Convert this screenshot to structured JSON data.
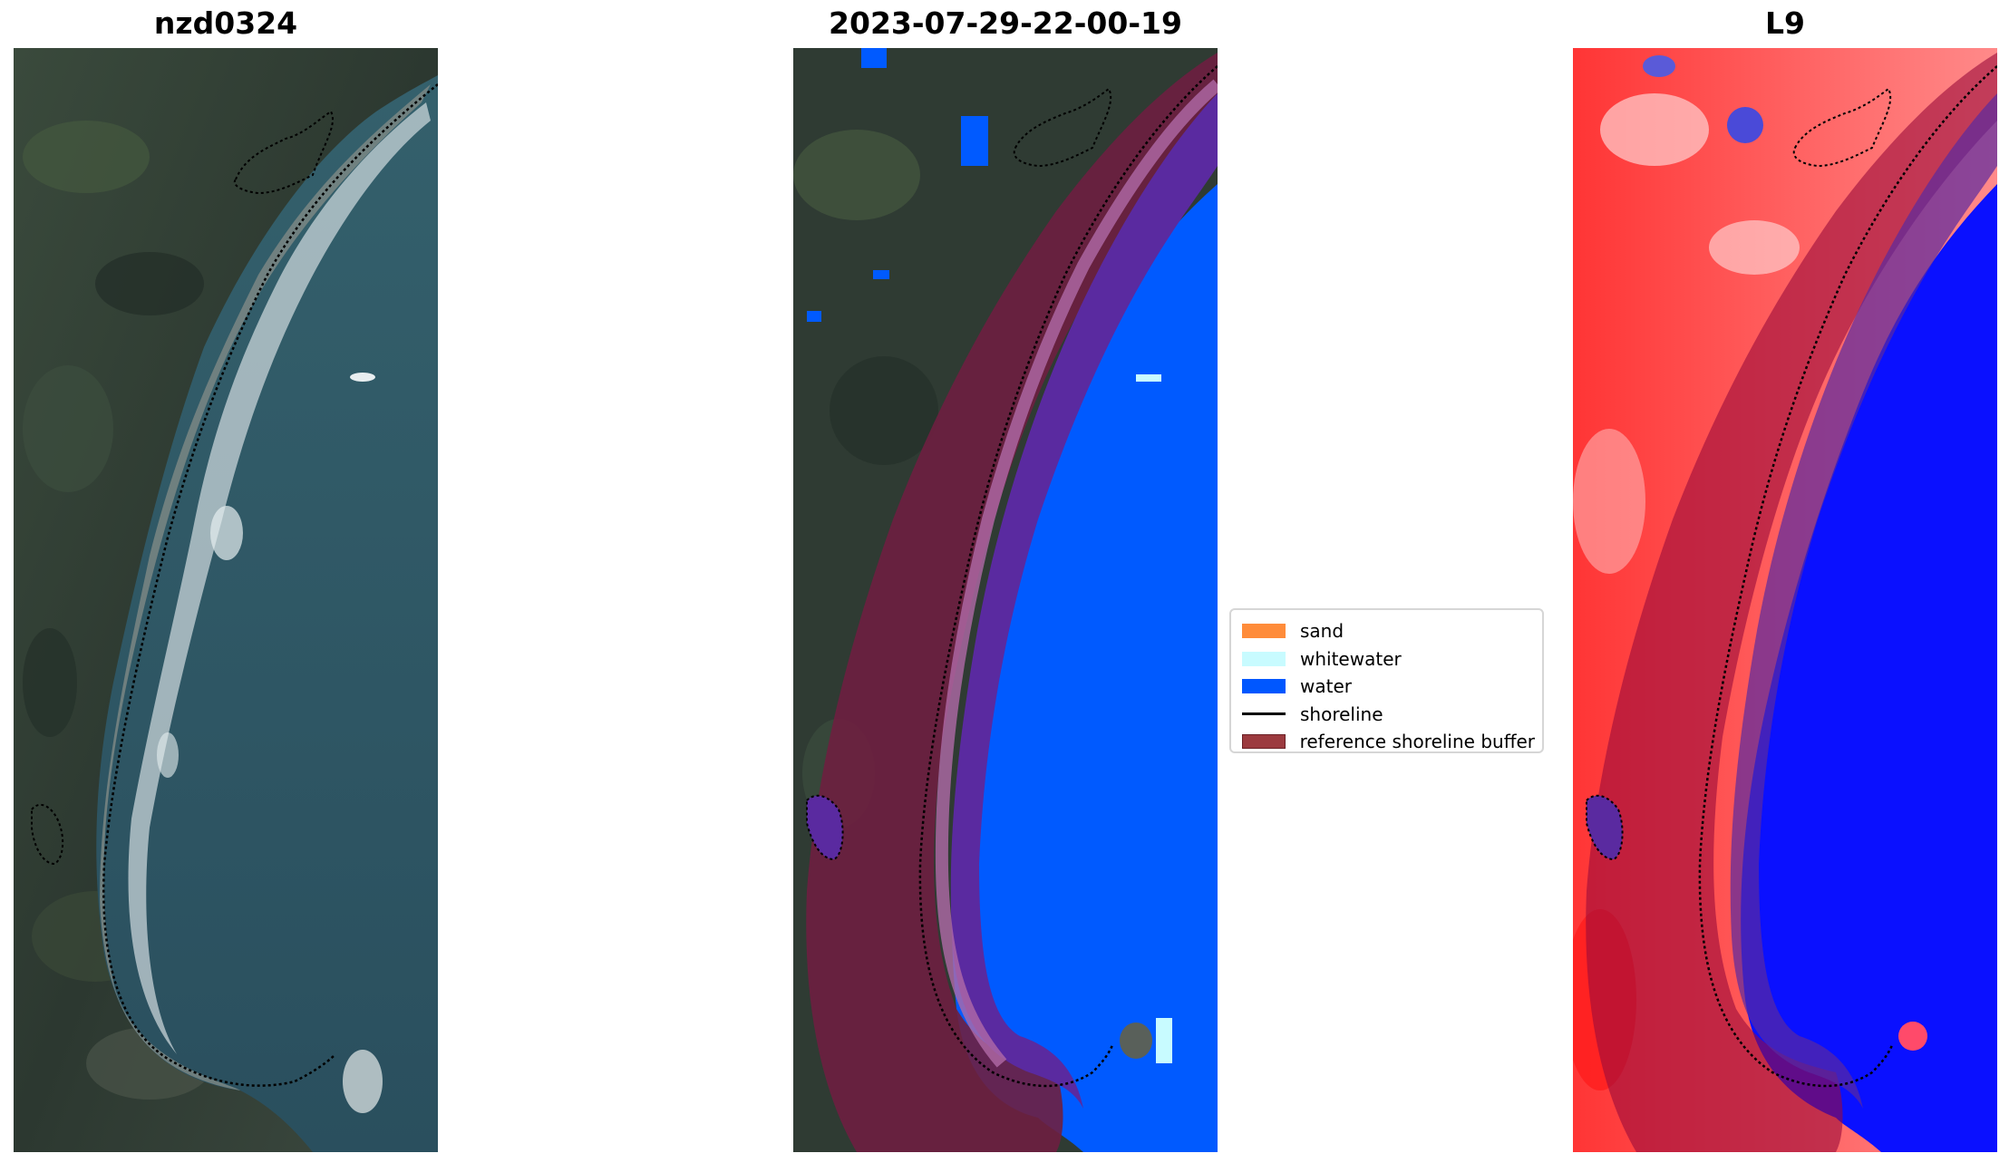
{
  "panels": {
    "rgb": {
      "title": "nzd0324"
    },
    "classified": {
      "title": "2023-07-29-22-00-19"
    },
    "index": {
      "title": "L9"
    }
  },
  "legend": {
    "items": [
      {
        "label": "sand",
        "kind": "patch",
        "color": "#ff8c3a"
      },
      {
        "label": "whitewater",
        "kind": "patch",
        "color": "#c8fbff"
      },
      {
        "label": "water",
        "kind": "patch",
        "color": "#0057ff"
      },
      {
        "label": "shoreline",
        "kind": "line",
        "color": "#000000"
      },
      {
        "label": "reference shoreline buffer",
        "kind": "patch",
        "color": "#9c3a3f"
      }
    ]
  },
  "colors": {
    "land_dark": "#2f3a33",
    "land_green": "#3b4c3a",
    "sea": "#2f5564",
    "surf": "#e8eef0",
    "water_class": "#005aff",
    "buffer": "#6e1f40",
    "nearshore_purple": "#5a2aa0",
    "index_red": "#ff2a2a",
    "index_blue": "#0a10ff"
  }
}
